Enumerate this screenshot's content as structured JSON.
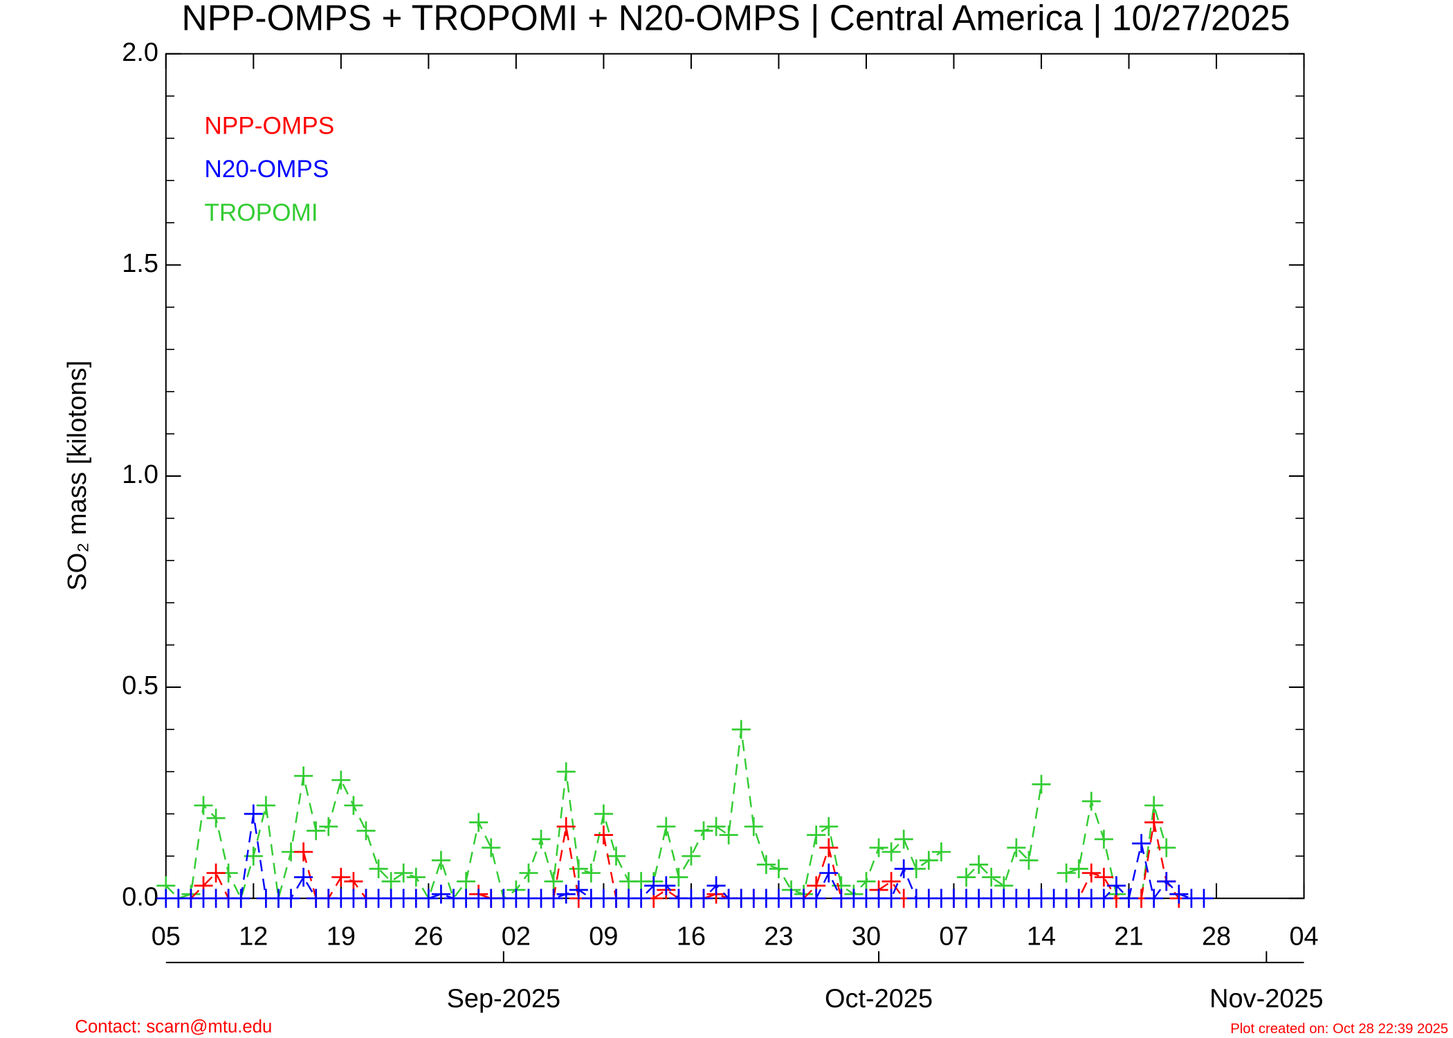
{
  "chart_data": {
    "type": "line",
    "title": "NPP-OMPS + TROPOMI + N20-OMPS | Central America | 10/27/2025",
    "ylabel": "SO₂ mass [kilotons]",
    "x": [
      "2025-08-05",
      "2025-08-06",
      "2025-08-07",
      "2025-08-08",
      "2025-08-09",
      "2025-08-10",
      "2025-08-11",
      "2025-08-12",
      "2025-08-13",
      "2025-08-14",
      "2025-08-15",
      "2025-08-16",
      "2025-08-17",
      "2025-08-18",
      "2025-08-19",
      "2025-08-20",
      "2025-08-21",
      "2025-08-22",
      "2025-08-23",
      "2025-08-24",
      "2025-08-25",
      "2025-08-26",
      "2025-08-27",
      "2025-08-28",
      "2025-08-29",
      "2025-08-30",
      "2025-08-31",
      "2025-09-01",
      "2025-09-02",
      "2025-09-03",
      "2025-09-04",
      "2025-09-05",
      "2025-09-06",
      "2025-09-07",
      "2025-09-08",
      "2025-09-09",
      "2025-09-10",
      "2025-09-11",
      "2025-09-12",
      "2025-09-13",
      "2025-09-14",
      "2025-09-15",
      "2025-09-16",
      "2025-09-17",
      "2025-09-18",
      "2025-09-19",
      "2025-09-20",
      "2025-09-21",
      "2025-09-22",
      "2025-09-23",
      "2025-09-24",
      "2025-09-25",
      "2025-09-26",
      "2025-09-27",
      "2025-09-28",
      "2025-09-29",
      "2025-09-30",
      "2025-10-01",
      "2025-10-02",
      "2025-10-03",
      "2025-10-04",
      "2025-10-05",
      "2025-10-06",
      "2025-10-07",
      "2025-10-08",
      "2025-10-09",
      "2025-10-10",
      "2025-10-11",
      "2025-10-12",
      "2025-10-13",
      "2025-10-14",
      "2025-10-15",
      "2025-10-16",
      "2025-10-17",
      "2025-10-18",
      "2025-10-19",
      "2025-10-20",
      "2025-10-21",
      "2025-10-22",
      "2025-10-23",
      "2025-10-24",
      "2025-10-25",
      "2025-10-26",
      "2025-10-27"
    ],
    "series": [
      {
        "name": "NPP-OMPS",
        "color": "#ff0000",
        "values": [
          null,
          null,
          0.0,
          0.03,
          0.06,
          0.0,
          null,
          null,
          null,
          null,
          null,
          0.11,
          0.0,
          0.0,
          0.05,
          0.04,
          0.0,
          null,
          null,
          null,
          null,
          null,
          null,
          null,
          null,
          0.01,
          0.0,
          null,
          null,
          null,
          null,
          0.0,
          0.17,
          0.0,
          null,
          0.15,
          0.0,
          null,
          null,
          0.0,
          0.02,
          0.0,
          null,
          0.0,
          0.01,
          0.0,
          0.0,
          0.0,
          null,
          null,
          null,
          0.0,
          0.03,
          0.12,
          0.0,
          null,
          null,
          0.02,
          0.04,
          0.0,
          null,
          null,
          null,
          0.0,
          null,
          null,
          null,
          null,
          null,
          null,
          null,
          null,
          0.0,
          0.0,
          0.06,
          0.05,
          0.0,
          null,
          0.0,
          0.18,
          0.04,
          0.0,
          null,
          null
        ]
      },
      {
        "name": "N20-OMPS",
        "color": "#0000ff",
        "values": [
          0,
          0,
          0,
          0,
          0,
          0,
          0,
          0.2,
          0,
          0,
          0,
          0.05,
          0,
          0,
          0,
          0,
          0,
          0,
          0,
          0,
          0,
          0,
          0.01,
          0,
          0,
          0,
          0,
          0,
          0,
          0,
          0,
          0,
          0.01,
          0.02,
          0,
          0,
          0,
          0,
          0,
          0.03,
          0.03,
          0,
          0,
          0,
          0.03,
          0,
          0,
          0,
          0,
          0,
          0,
          0,
          0,
          0.06,
          0,
          0,
          0,
          0,
          0,
          0.07,
          0,
          0,
          0,
          0,
          0,
          0,
          0,
          0,
          0,
          0,
          0,
          0,
          0,
          0,
          0,
          0,
          0.03,
          0,
          0.13,
          0,
          0.04,
          0.01,
          0,
          0
        ]
      },
      {
        "name": "TROPOMI",
        "color": "#33cc33",
        "values": [
          0.03,
          0.0,
          0.01,
          0.22,
          0.19,
          0.06,
          0.0,
          0.1,
          0.22,
          0.0,
          0.11,
          0.29,
          0.16,
          0.17,
          0.28,
          0.22,
          0.16,
          0.07,
          0.04,
          0.06,
          0.05,
          0.0,
          0.09,
          0.0,
          0.04,
          0.18,
          0.12,
          0.0,
          0.02,
          0.06,
          0.14,
          0.04,
          0.3,
          0.07,
          0.06,
          0.2,
          0.1,
          0.04,
          0.04,
          0.04,
          0.17,
          0.05,
          0.1,
          0.16,
          0.17,
          0.15,
          0.4,
          0.17,
          0.08,
          0.07,
          0.02,
          0.01,
          0.15,
          0.17,
          0.03,
          0.01,
          0.04,
          0.12,
          0.11,
          0.14,
          0.07,
          0.09,
          0.11,
          null,
          0.05,
          0.08,
          0.05,
          0.03,
          0.12,
          0.09,
          0.27,
          null,
          0.06,
          0.07,
          0.23,
          0.14,
          0.01,
          0.0,
          0.0,
          0.22,
          0.12,
          null,
          null,
          null
        ]
      }
    ],
    "xlim": [
      "2025-08-05",
      "2025-11-04"
    ],
    "xticks": [
      {
        "value": "2025-08-05",
        "label": "05"
      },
      {
        "value": "2025-08-12",
        "label": "12"
      },
      {
        "value": "2025-08-19",
        "label": "19"
      },
      {
        "value": "2025-08-26",
        "label": "26"
      },
      {
        "value": "2025-09-02",
        "label": "02"
      },
      {
        "value": "2025-09-09",
        "label": "09"
      },
      {
        "value": "2025-09-16",
        "label": "16"
      },
      {
        "value": "2025-09-23",
        "label": "23"
      },
      {
        "value": "2025-09-30",
        "label": "30"
      },
      {
        "value": "2025-10-07",
        "label": "07"
      },
      {
        "value": "2025-10-14",
        "label": "14"
      },
      {
        "value": "2025-10-21",
        "label": "21"
      },
      {
        "value": "2025-10-28",
        "label": "28"
      },
      {
        "value": "2025-11-04",
        "label": "04"
      }
    ],
    "month_ticks": [
      {
        "value": "2025-09-01",
        "label": "Sep-2025"
      },
      {
        "value": "2025-10-01",
        "label": "Oct-2025"
      },
      {
        "value": "2025-11-01",
        "label": "Nov-2025"
      }
    ],
    "ylim": [
      0,
      2
    ],
    "yticks": [
      {
        "value": 0,
        "label": "0.0"
      },
      0.5,
      {
        "value": 1,
        "label": "1.0"
      },
      1.5,
      {
        "value": 2,
        "label": "2.0"
      }
    ],
    "contact": "Contact: scarn@mtu.edu",
    "created": "Plot created on: Oct 28 22:39 2025"
  }
}
